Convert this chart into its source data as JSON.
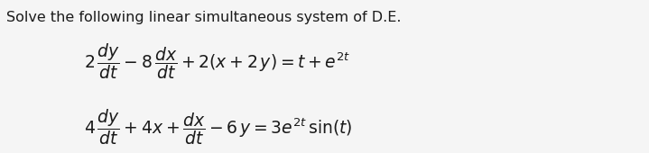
{
  "title": "Solve the following linear simultaneous system of D.E.",
  "text_color": "#1a1a1a",
  "bg_color": "#f5f5f5",
  "title_fontsize": 11.5,
  "eq_fontsize": 13.5,
  "fig_width": 7.19,
  "fig_height": 1.7,
  "dpi": 100
}
